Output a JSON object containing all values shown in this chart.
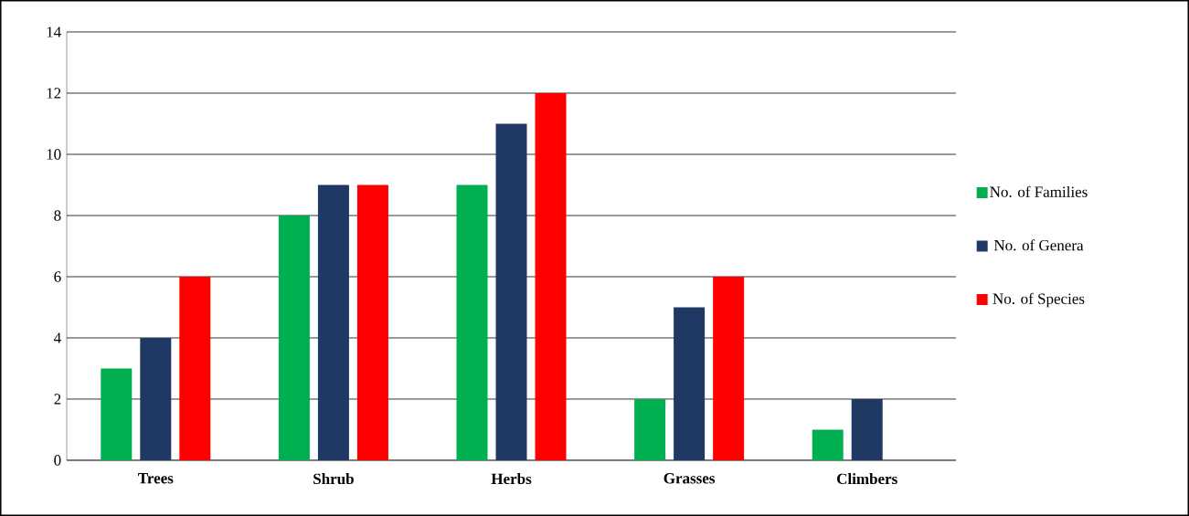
{
  "chart_data": {
    "type": "bar",
    "categories": [
      "Trees",
      "Shrub",
      "Herbs",
      "Grasses",
      "Climbers"
    ],
    "series": [
      {
        "name": "No. of Families",
        "color": "#00b050",
        "values": [
          3,
          8,
          9,
          2,
          1
        ]
      },
      {
        "name": "No. of Genera",
        "color": "#1f3864",
        "values": [
          4,
          9,
          11,
          5,
          2
        ]
      },
      {
        "name": "No. of Species",
        "color": "#ff0000",
        "values": [
          6,
          9,
          12,
          6,
          0
        ]
      }
    ],
    "ylim": [
      0,
      14
    ],
    "yticks": [
      0,
      2,
      4,
      6,
      8,
      10,
      12,
      14
    ],
    "grid": "y",
    "legend": "right"
  }
}
